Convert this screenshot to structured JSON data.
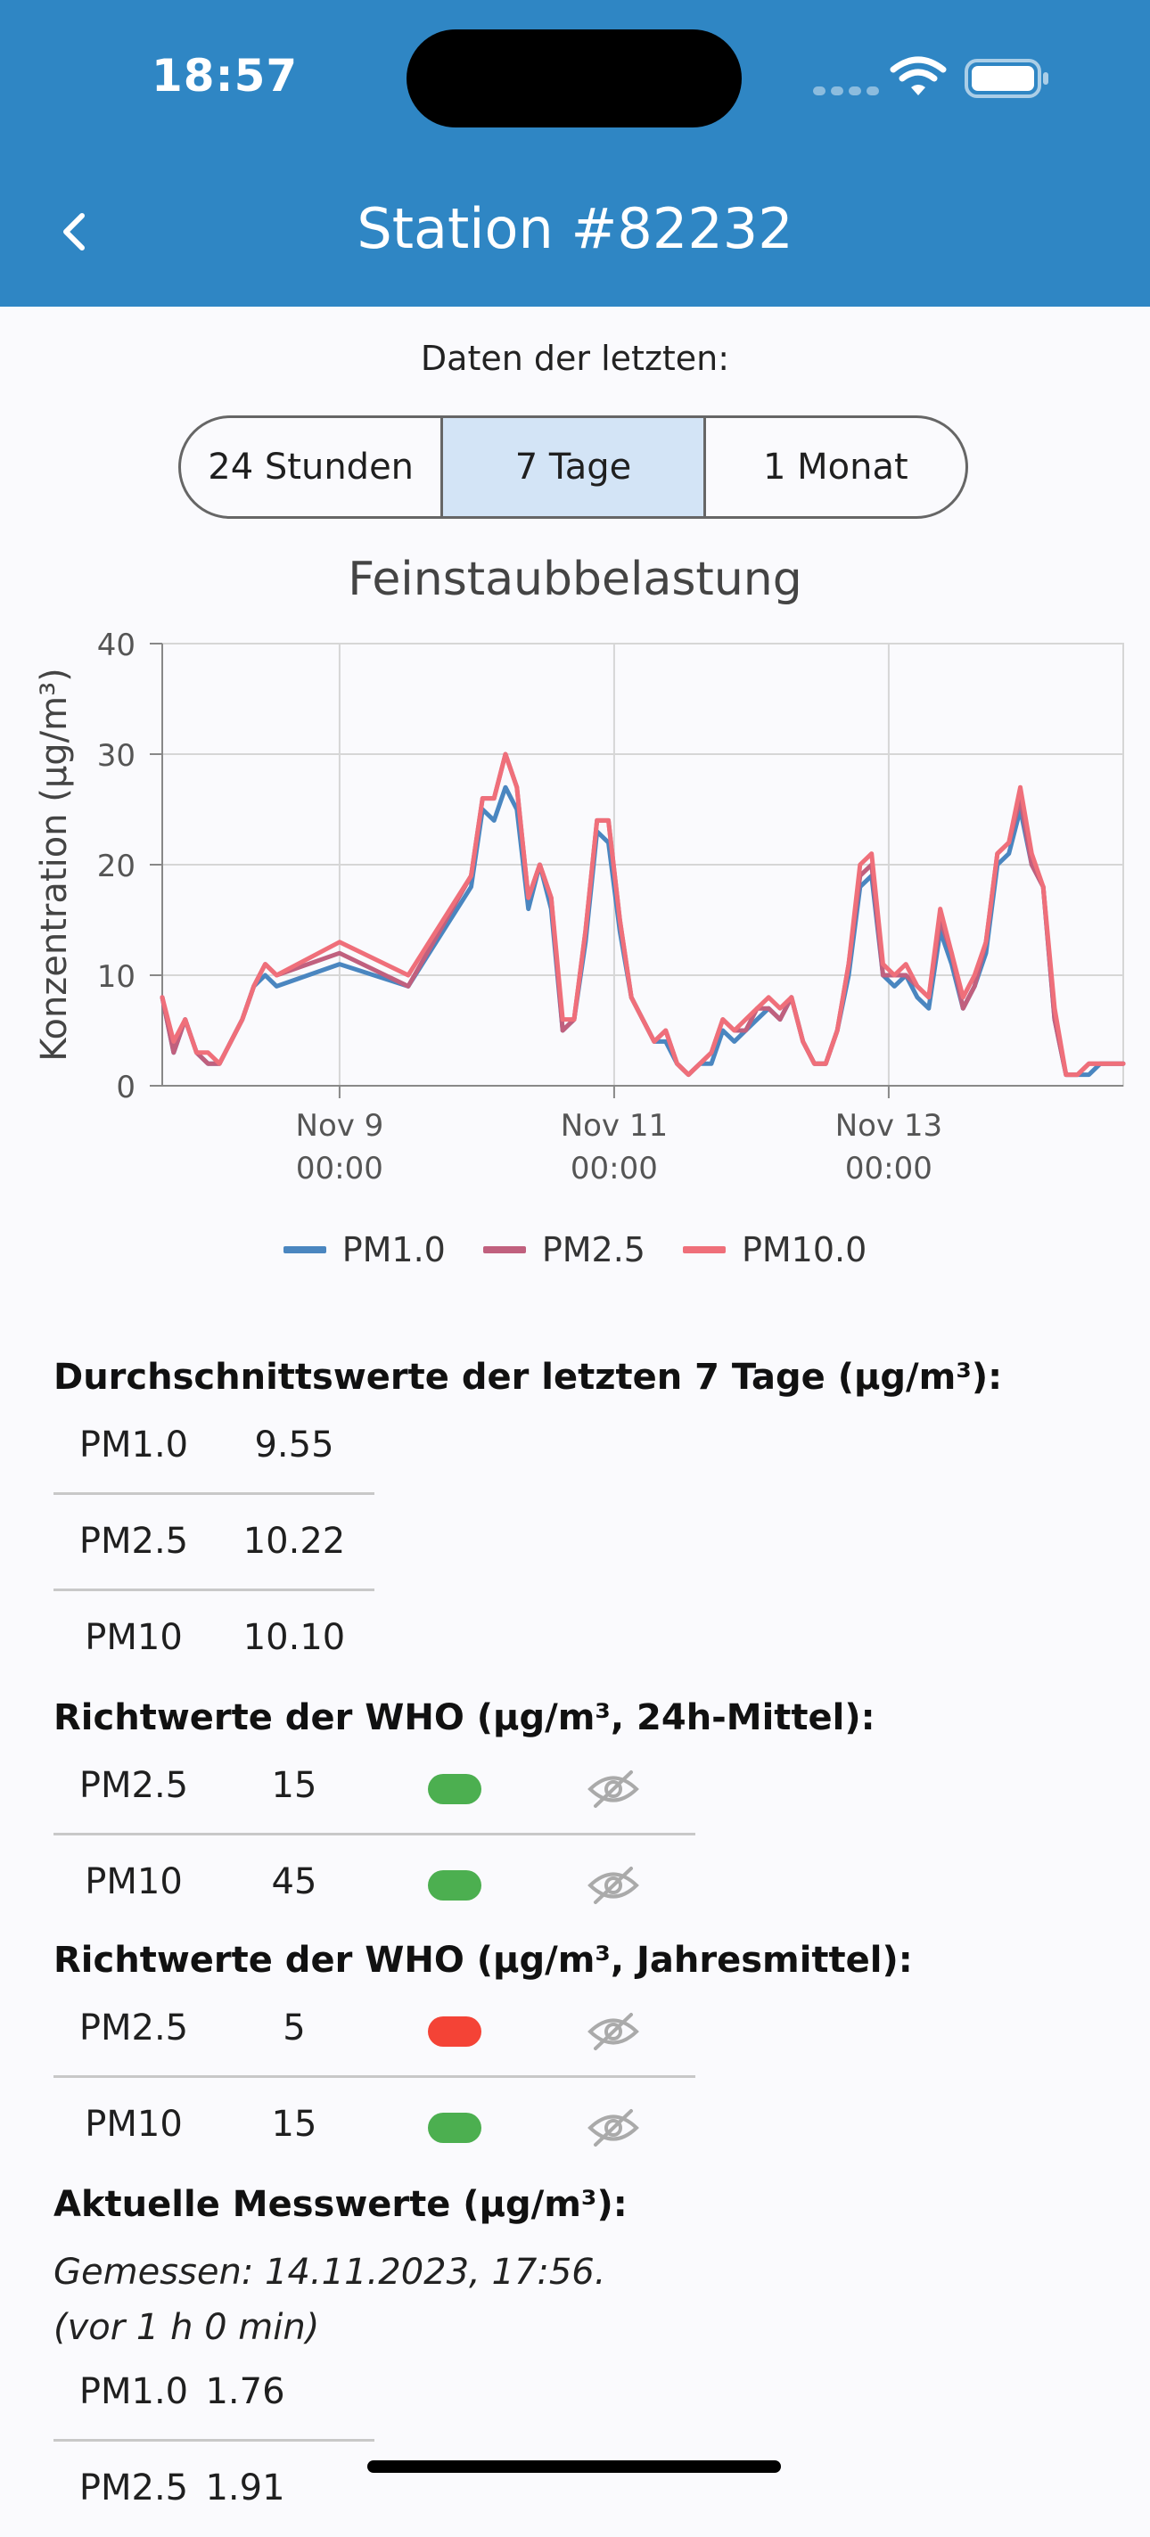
{
  "status_bar": {
    "time": "18:57"
  },
  "nav": {
    "title": "Station #82232",
    "back_icon": "chevron-left-icon"
  },
  "period": {
    "label": "Daten der letzten:",
    "options": [
      "24 Stunden",
      "7 Tage",
      "1 Monat"
    ],
    "selected": "7 Tage"
  },
  "chart_data": {
    "type": "line",
    "title": "Feinstaubbelastung",
    "ylabel": "Konzentration (µg/m³)",
    "xlabel": "",
    "ylim": [
      0,
      40
    ],
    "yticks": [
      0,
      10,
      20,
      30,
      40
    ],
    "xlim": [
      "2023-11-07T17:00",
      "2023-11-14T17:00"
    ],
    "xticks": [
      {
        "x": "2023-11-09T00:00",
        "label_line1": "Nov 9",
        "label_line2": "00:00"
      },
      {
        "x": "2023-11-11T00:00",
        "label_line1": "Nov 11",
        "label_line2": "00:00"
      },
      {
        "x": "2023-11-13T00:00",
        "label_line1": "Nov 13",
        "label_line2": "00:00"
      }
    ],
    "grid": true,
    "legend_position": "bottom",
    "x": [
      "2023-11-07T17:00",
      "2023-11-07T19:00",
      "2023-11-07T21:00",
      "2023-11-07T23:00",
      "2023-11-08T01:00",
      "2023-11-08T03:00",
      "2023-11-08T05:00",
      "2023-11-08T07:00",
      "2023-11-08T09:00",
      "2023-11-08T11:00",
      "2023-11-08T13:00",
      "2023-11-09T00:00",
      "2023-11-09T12:00",
      "2023-11-09T23:00",
      "2023-11-10T01:00",
      "2023-11-10T03:00",
      "2023-11-10T05:00",
      "2023-11-10T07:00",
      "2023-11-10T09:00",
      "2023-11-10T11:00",
      "2023-11-10T13:00",
      "2023-11-10T15:00",
      "2023-11-10T17:00",
      "2023-11-10T19:00",
      "2023-11-10T21:00",
      "2023-11-10T23:00",
      "2023-11-11T01:00",
      "2023-11-11T03:00",
      "2023-11-11T05:00",
      "2023-11-11T07:00",
      "2023-11-11T09:00",
      "2023-11-11T11:00",
      "2023-11-11T13:00",
      "2023-11-11T15:00",
      "2023-11-11T17:00",
      "2023-11-11T19:00",
      "2023-11-11T21:00",
      "2023-11-11T23:00",
      "2023-11-12T01:00",
      "2023-11-12T03:00",
      "2023-11-12T05:00",
      "2023-11-12T07:00",
      "2023-11-12T09:00",
      "2023-11-12T11:00",
      "2023-11-12T13:00",
      "2023-11-12T15:00",
      "2023-11-12T17:00",
      "2023-11-12T19:00",
      "2023-11-12T21:00",
      "2023-11-12T23:00",
      "2023-11-13T01:00",
      "2023-11-13T03:00",
      "2023-11-13T05:00",
      "2023-11-13T07:00",
      "2023-11-13T09:00",
      "2023-11-13T11:00",
      "2023-11-13T13:00",
      "2023-11-13T15:00",
      "2023-11-13T17:00",
      "2023-11-13T19:00",
      "2023-11-13T21:00",
      "2023-11-13T23:00",
      "2023-11-14T01:00",
      "2023-11-14T03:00",
      "2023-11-14T05:00",
      "2023-11-14T07:00",
      "2023-11-14T09:00",
      "2023-11-14T11:00",
      "2023-11-14T13:00",
      "2023-11-14T15:00",
      "2023-11-14T17:00"
    ],
    "series": [
      {
        "name": "PM1.0",
        "color": "#4a86c0",
        "values": [
          8,
          3,
          6,
          3,
          2,
          2,
          4,
          6,
          9,
          10,
          9,
          11,
          9,
          18,
          25,
          24,
          27,
          25,
          16,
          20,
          16,
          5,
          6,
          13,
          23,
          22,
          14,
          8,
          6,
          4,
          4,
          2,
          1,
          2,
          2,
          5,
          4,
          5,
          6,
          7,
          6,
          8,
          4,
          2,
          2,
          5,
          10,
          18,
          19,
          10,
          9,
          10,
          8,
          7,
          14,
          11,
          7,
          9,
          12,
          20,
          21,
          25,
          20,
          18,
          6,
          1,
          1,
          1,
          2,
          2,
          2
        ]
      },
      {
        "name": "PM2.5",
        "color": "#c0607e",
        "values": [
          8,
          3,
          6,
          3,
          2,
          2,
          4,
          6,
          9,
          11,
          10,
          12,
          9,
          19,
          26,
          26,
          30,
          27,
          17,
          20,
          17,
          5,
          6,
          14,
          24,
          24,
          15,
          8,
          6,
          4,
          5,
          2,
          1,
          2,
          3,
          6,
          5,
          5,
          7,
          7,
          6,
          8,
          4,
          2,
          2,
          5,
          11,
          19,
          20,
          10,
          10,
          10,
          9,
          8,
          15,
          12,
          7,
          9,
          13,
          21,
          22,
          26,
          20,
          18,
          6,
          1,
          1,
          2,
          2,
          2,
          2
        ]
      },
      {
        "name": "PM10.0",
        "color": "#ef6f7a",
        "values": [
          8,
          4,
          6,
          3,
          3,
          2,
          4,
          6,
          9,
          11,
          10,
          13,
          10,
          19,
          26,
          26,
          30,
          27,
          17,
          20,
          17,
          6,
          6,
          14,
          24,
          24,
          15,
          8,
          6,
          4,
          5,
          2,
          1,
          2,
          3,
          6,
          5,
          6,
          7,
          8,
          7,
          8,
          4,
          2,
          2,
          5,
          11,
          20,
          21,
          11,
          10,
          11,
          9,
          8,
          16,
          12,
          8,
          10,
          13,
          21,
          22,
          27,
          21,
          18,
          7,
          1,
          1,
          2,
          2,
          2,
          2
        ]
      }
    ]
  },
  "averages": {
    "heading": "Durchschnittswerte der letzten 7 Tage (µg/m³):",
    "rows": [
      {
        "name": "PM1.0",
        "value": "9.55"
      },
      {
        "name": "PM2.5",
        "value": "10.22"
      },
      {
        "name": "PM10",
        "value": "10.10"
      }
    ]
  },
  "who_24h": {
    "heading": "Richtwerte der WHO (µg/m³, 24h-Mittel):",
    "rows": [
      {
        "name": "PM2.5",
        "value": "15",
        "status": "green",
        "status_color": "#4caf50",
        "icon": "eye-off-icon"
      },
      {
        "name": "PM10",
        "value": "45",
        "status": "green",
        "status_color": "#4caf50",
        "icon": "eye-off-icon"
      }
    ]
  },
  "who_year": {
    "heading": "Richtwerte der WHO (µg/m³, Jahresmittel):",
    "rows": [
      {
        "name": "PM2.5",
        "value": "5",
        "status": "red",
        "status_color": "#f44336",
        "icon": "eye-off-icon"
      },
      {
        "name": "PM10",
        "value": "15",
        "status": "green",
        "status_color": "#4caf50",
        "icon": "eye-off-icon"
      }
    ]
  },
  "current": {
    "heading": "Aktuelle Messwerte (µg/m³):",
    "measured": "Gemessen: 14.11.2023, 17:56.",
    "ago": "(vor 1 h 0 min)",
    "rows": [
      {
        "name": "PM1.0",
        "value": "1.76"
      },
      {
        "name": "PM2.5",
        "value": "1.91"
      }
    ]
  },
  "colors": {
    "header": "#2f86c4",
    "segment_active": "#d3e4f6"
  }
}
